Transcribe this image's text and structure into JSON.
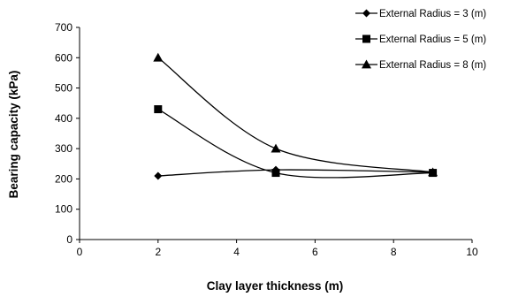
{
  "chart_data": {
    "type": "line",
    "title": "",
    "xlabel": "Clay layer thickness (m)",
    "ylabel": "Bearing capacity (kPa)",
    "xlim": [
      0,
      10
    ],
    "ylim": [
      0,
      700
    ],
    "xticks": [
      "0",
      "2",
      "4",
      "6",
      "8",
      "10"
    ],
    "yticks": [
      "0",
      "100",
      "200",
      "300",
      "400",
      "500",
      "600",
      "700"
    ],
    "grid": false,
    "smooth": true,
    "legend_position": "top-right",
    "series": [
      {
        "name": "External Radius = 3 (m)",
        "marker": "diamond",
        "color": "#000000",
        "x": [
          2,
          5,
          9
        ],
        "y": [
          210,
          230,
          222
        ]
      },
      {
        "name": "External Radius = 5 (m)",
        "marker": "square",
        "color": "#000000",
        "x": [
          2,
          5,
          9
        ],
        "y": [
          430,
          220,
          220
        ]
      },
      {
        "name": "External Radius = 8 (m)",
        "marker": "triangle",
        "color": "#000000",
        "x": [
          2,
          5,
          9
        ],
        "y": [
          600,
          300,
          222
        ]
      }
    ]
  }
}
